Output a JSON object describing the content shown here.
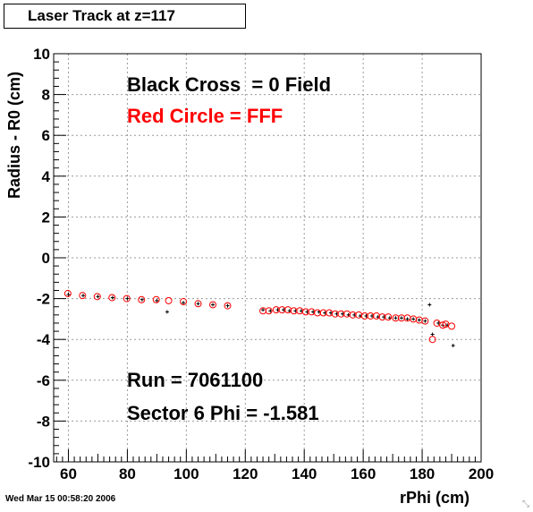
{
  "header": {
    "title": "Laser Track at z=117"
  },
  "footer": {
    "timestamp": "Wed Mar 15 00:58:20 2006"
  },
  "colors": {
    "black_series": "#000000",
    "red_series": "#ff0000",
    "grid": "#999999"
  },
  "chart_data": {
    "type": "scatter",
    "title": "Laser Track at z=117",
    "xlabel": "rPhi (cm)",
    "ylabel": "Radius - R0 (cm)",
    "xlim": [
      55,
      200
    ],
    "ylim": [
      -10,
      10
    ],
    "xticks": [
      60,
      80,
      100,
      120,
      140,
      160,
      180,
      200
    ],
    "yticks": [
      10,
      8,
      6,
      4,
      2,
      0,
      -2,
      -4,
      -6,
      -8,
      -10
    ],
    "grid": true,
    "annotations": [
      {
        "text": "Black Cross  = 0 Field",
        "color": "#000000"
      },
      {
        "text": "Red Circle = FFF",
        "color": "#ff0000"
      },
      {
        "text": "Run = 7061100",
        "color": "#000000"
      },
      {
        "text": "Sector 6 Phi = -1.581",
        "color": "#000000"
      }
    ],
    "series": [
      {
        "name": "Black Cross",
        "marker": "cross",
        "color": "#000000",
        "x": [
          60,
          65,
          70,
          75,
          80,
          85,
          90,
          93.5,
          99,
          104,
          109,
          114,
          126,
          128.5,
          131,
          133,
          135,
          137,
          139,
          141,
          143,
          145,
          147,
          149,
          151,
          153,
          155,
          157,
          159,
          161,
          163,
          165,
          167,
          169,
          171,
          173,
          175,
          177,
          179,
          181,
          182.5,
          183.5,
          185.5,
          187,
          188.5,
          190.5
        ],
        "y": [
          -1.8,
          -1.85,
          -1.9,
          -1.95,
          -2.0,
          -2.05,
          -2.1,
          -2.65,
          -2.2,
          -2.25,
          -2.3,
          -2.35,
          -2.55,
          -2.6,
          -2.55,
          -2.55,
          -2.6,
          -2.6,
          -2.6,
          -2.65,
          -2.65,
          -2.65,
          -2.7,
          -2.7,
          -2.75,
          -2.75,
          -2.8,
          -2.8,
          -2.85,
          -2.85,
          -2.85,
          -2.9,
          -2.9,
          -2.95,
          -2.95,
          -2.95,
          -3.0,
          -3.0,
          -3.05,
          -3.1,
          -2.3,
          -3.75,
          -3.2,
          -3.3,
          -3.3,
          -4.3
        ]
      },
      {
        "name": "Red Circle",
        "marker": "circle",
        "color": "#ff0000",
        "x": [
          59.8,
          64.8,
          69.8,
          74.8,
          79.8,
          84.8,
          89.8,
          94,
          99,
          104,
          109,
          114,
          126,
          128,
          130.5,
          132.5,
          134.5,
          136.5,
          138.5,
          140.5,
          142.5,
          144.5,
          146.5,
          148.5,
          150.5,
          152.5,
          154.5,
          156.5,
          158.5,
          160.5,
          162.5,
          164.5,
          166.5,
          168.5,
          171,
          173,
          175,
          177,
          179,
          181,
          183.5,
          185,
          187,
          188,
          190
        ],
        "y": [
          -1.75,
          -1.85,
          -1.9,
          -1.95,
          -2.0,
          -2.05,
          -2.05,
          -2.1,
          -2.15,
          -2.25,
          -2.3,
          -2.35,
          -2.6,
          -2.6,
          -2.55,
          -2.55,
          -2.55,
          -2.6,
          -2.6,
          -2.65,
          -2.65,
          -2.7,
          -2.7,
          -2.7,
          -2.75,
          -2.75,
          -2.75,
          -2.8,
          -2.8,
          -2.85,
          -2.85,
          -2.85,
          -2.9,
          -2.9,
          -2.95,
          -2.95,
          -2.95,
          -3.0,
          -3.05,
          -3.1,
          -4.0,
          -3.2,
          -3.3,
          -3.25,
          -3.35
        ]
      }
    ]
  }
}
